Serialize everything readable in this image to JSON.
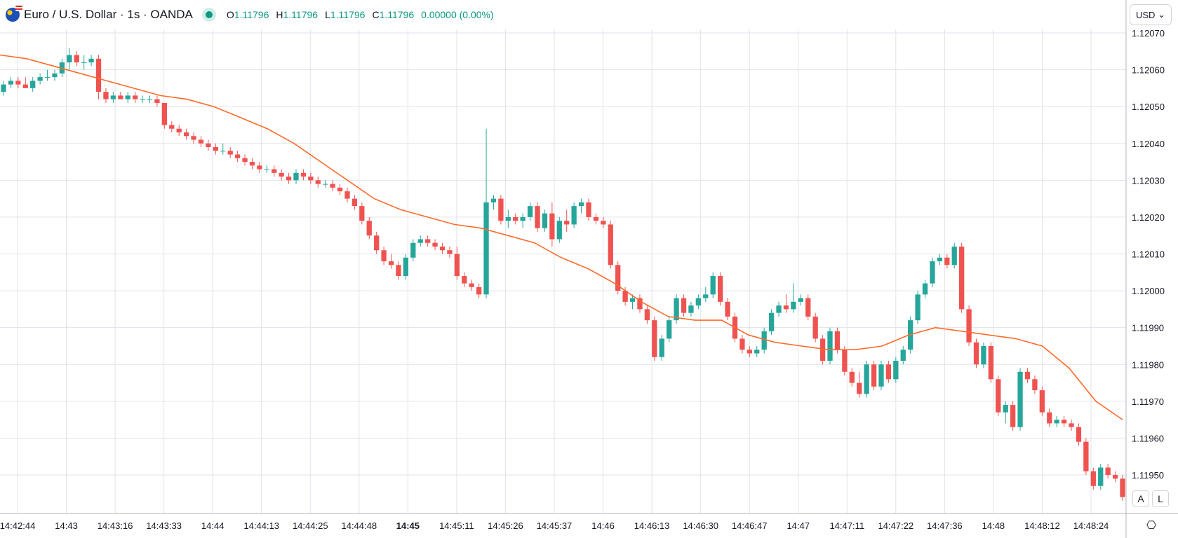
{
  "header": {
    "symbol": "Euro / U.S. Dollar · 1s · OANDA",
    "open_label": "O",
    "open": "1.11796",
    "high_label": "H",
    "high": "1.11796",
    "low_label": "L",
    "low": "1.11796",
    "close_label": "C",
    "close": "1.11796",
    "change": "0.00000 (0.00%)"
  },
  "price_axis": {
    "currency": "USD",
    "auto_button": "A",
    "log_button": "L"
  },
  "colors": {
    "up": "#26a69a",
    "down": "#ef5350",
    "ma": "#ff6a2a",
    "grid": "#e0e3eb",
    "text": "#131722"
  },
  "chart_data": {
    "type": "candlestick",
    "ylim": [
      1.11943,
      1.12073
    ],
    "y_ticks": [
      1.1207,
      1.1206,
      1.1205,
      1.1204,
      1.1203,
      1.1202,
      1.1201,
      1.12,
      1.1199,
      1.1198,
      1.1197,
      1.1196,
      1.1195
    ],
    "y_tick_labels": [
      "1.12070",
      "1.12060",
      "1.12050",
      "1.12040",
      "1.12030",
      "1.12020",
      "1.12010",
      "1.12000",
      "1.11990",
      "1.11980",
      "1.11970",
      "1.11960",
      "1.11950"
    ],
    "x_tick_labels": [
      "14:42:44",
      "14:43",
      "14:43:16",
      "14:43:33",
      "14:44",
      "14:44:13",
      "14:44:25",
      "14:44:48",
      "14:45",
      "14:45:11",
      "14:45:26",
      "14:45:37",
      "14:46",
      "14:46:13",
      "14:46:30",
      "14:46:47",
      "14:47",
      "14:47:11",
      "14:47:22",
      "14:47:36",
      "14:48",
      "14:48:12",
      "14:48:24"
    ],
    "bold_ticks": [
      "14:45"
    ],
    "grid": true,
    "moving_average": [
      1.12064,
      1.12063,
      1.12061,
      1.12059,
      1.12057,
      1.12055,
      1.12053,
      1.12052,
      1.1205,
      1.12047,
      1.12044,
      1.1204,
      1.12035,
      1.1203,
      1.12025,
      1.12022,
      1.1202,
      1.12018,
      1.12017,
      1.12015,
      1.12013,
      1.12009,
      1.12006,
      1.12002,
      1.11997,
      1.11993,
      1.11992,
      1.11992,
      1.11988,
      1.11986,
      1.11985,
      1.11984,
      1.11984,
      1.11985,
      1.11988,
      1.1199,
      1.11989,
      1.11988,
      1.11987,
      1.11985,
      1.11979,
      1.1197,
      1.11965
    ],
    "candles": [
      [
        1.12054,
        1.12057,
        1.12053,
        1.12056
      ],
      [
        1.12056,
        1.12058,
        1.12055,
        1.12057
      ],
      [
        1.12057,
        1.12058,
        1.12055,
        1.12056
      ],
      [
        1.12056,
        1.12058,
        1.12055,
        1.12055
      ],
      [
        1.12055,
        1.12058,
        1.12054,
        1.12057
      ],
      [
        1.12057,
        1.12059,
        1.12056,
        1.12058
      ],
      [
        1.12058,
        1.1206,
        1.12057,
        1.12058
      ],
      [
        1.12058,
        1.1206,
        1.12057,
        1.12059
      ],
      [
        1.12059,
        1.12063,
        1.12058,
        1.12062
      ],
      [
        1.12062,
        1.12066,
        1.1206,
        1.12064
      ],
      [
        1.12064,
        1.12065,
        1.12061,
        1.12062
      ],
      [
        1.12062,
        1.12064,
        1.1206,
        1.12062
      ],
      [
        1.12062,
        1.12064,
        1.12061,
        1.12063
      ],
      [
        1.12063,
        1.12064,
        1.12052,
        1.12054
      ],
      [
        1.12054,
        1.12055,
        1.12051,
        1.12052
      ],
      [
        1.12052,
        1.12054,
        1.12051,
        1.12053
      ],
      [
        1.12053,
        1.12054,
        1.12052,
        1.12052
      ],
      [
        1.12052,
        1.12054,
        1.12051,
        1.12053
      ],
      [
        1.12053,
        1.12054,
        1.12051,
        1.12052
      ],
      [
        1.12052,
        1.12053,
        1.12051,
        1.12052
      ],
      [
        1.12052,
        1.12053,
        1.12051,
        1.12052
      ],
      [
        1.12052,
        1.12053,
        1.1205,
        1.12051
      ],
      [
        1.12051,
        1.12051,
        1.12044,
        1.12045
      ],
      [
        1.12045,
        1.12046,
        1.12043,
        1.12044
      ],
      [
        1.12044,
        1.12045,
        1.12042,
        1.12043
      ],
      [
        1.12043,
        1.12044,
        1.12041,
        1.12042
      ],
      [
        1.12042,
        1.12043,
        1.1204,
        1.12041
      ],
      [
        1.12041,
        1.12042,
        1.12039,
        1.1204
      ],
      [
        1.1204,
        1.12041,
        1.12038,
        1.12039
      ],
      [
        1.12039,
        1.1204,
        1.12037,
        1.12038
      ],
      [
        1.12038,
        1.1204,
        1.12037,
        1.12038
      ],
      [
        1.12038,
        1.12039,
        1.12036,
        1.12037
      ],
      [
        1.12037,
        1.12038,
        1.12035,
        1.12036
      ],
      [
        1.12036,
        1.12037,
        1.12034,
        1.12035
      ],
      [
        1.12035,
        1.12036,
        1.12033,
        1.12034
      ],
      [
        1.12034,
        1.12035,
        1.12032,
        1.12033
      ],
      [
        1.12033,
        1.12034,
        1.12032,
        1.12033
      ],
      [
        1.12033,
        1.12034,
        1.12031,
        1.12032
      ],
      [
        1.12032,
        1.12033,
        1.1203,
        1.12031
      ],
      [
        1.12031,
        1.12032,
        1.12029,
        1.1203
      ],
      [
        1.1203,
        1.12033,
        1.12029,
        1.12032
      ],
      [
        1.12032,
        1.12033,
        1.1203,
        1.12031
      ],
      [
        1.12031,
        1.12032,
        1.12029,
        1.1203
      ],
      [
        1.1203,
        1.12031,
        1.12028,
        1.12029
      ],
      [
        1.12029,
        1.1203,
        1.12028,
        1.12029
      ],
      [
        1.12029,
        1.1203,
        1.12027,
        1.12028
      ],
      [
        1.12028,
        1.12029,
        1.12026,
        1.12027
      ],
      [
        1.12027,
        1.12028,
        1.12024,
        1.12025
      ],
      [
        1.12025,
        1.12026,
        1.12022,
        1.12023
      ],
      [
        1.12023,
        1.12024,
        1.12018,
        1.12019
      ],
      [
        1.12019,
        1.1202,
        1.12014,
        1.12015
      ],
      [
        1.12015,
        1.12016,
        1.1201,
        1.12011
      ],
      [
        1.12011,
        1.12012,
        1.12007,
        1.12008
      ],
      [
        1.12008,
        1.1201,
        1.12006,
        1.12007
      ],
      [
        1.12007,
        1.12008,
        1.12003,
        1.12004
      ],
      [
        1.12004,
        1.1201,
        1.12003,
        1.12009
      ],
      [
        1.12009,
        1.12014,
        1.12008,
        1.12013
      ],
      [
        1.12013,
        1.12015,
        1.12012,
        1.12014
      ],
      [
        1.12014,
        1.12015,
        1.12012,
        1.12013
      ],
      [
        1.12013,
        1.12014,
        1.12011,
        1.12012
      ],
      [
        1.12012,
        1.12013,
        1.1201,
        1.12011
      ],
      [
        1.12011,
        1.12012,
        1.12009,
        1.1201
      ],
      [
        1.1201,
        1.12012,
        1.12003,
        1.12004
      ],
      [
        1.12004,
        1.12005,
        1.12001,
        1.12002
      ],
      [
        1.12002,
        1.12003,
        1.12,
        1.12001
      ],
      [
        1.12001,
        1.12002,
        1.11998,
        1.11999
      ],
      [
        1.11999,
        1.12044,
        1.11998,
        1.12024
      ],
      [
        1.12024,
        1.12026,
        1.12022,
        1.12025
      ],
      [
        1.12025,
        1.12026,
        1.12018,
        1.12019
      ],
      [
        1.12019,
        1.12022,
        1.12017,
        1.1202
      ],
      [
        1.1202,
        1.12021,
        1.12018,
        1.12019
      ],
      [
        1.12019,
        1.12021,
        1.12017,
        1.1202
      ],
      [
        1.1202,
        1.12024,
        1.12019,
        1.12023
      ],
      [
        1.12023,
        1.12024,
        1.12016,
        1.12017
      ],
      [
        1.12017,
        1.12022,
        1.12016,
        1.12021
      ],
      [
        1.12021,
        1.12024,
        1.12012,
        1.12014
      ],
      [
        1.12014,
        1.1202,
        1.12013,
        1.12019
      ],
      [
        1.12019,
        1.12022,
        1.12016,
        1.12018
      ],
      [
        1.12018,
        1.12024,
        1.12017,
        1.12023
      ],
      [
        1.12023,
        1.12025,
        1.12021,
        1.12024
      ],
      [
        1.12024,
        1.12025,
        1.12019,
        1.1202
      ],
      [
        1.1202,
        1.12021,
        1.12018,
        1.12019
      ],
      [
        1.12019,
        1.1202,
        1.12017,
        1.12018
      ],
      [
        1.12018,
        1.12019,
        1.12006,
        1.12007
      ],
      [
        1.12007,
        1.12008,
        1.11999,
        1.12
      ],
      [
        1.12,
        1.12001,
        1.11996,
        1.11997
      ],
      [
        1.11997,
        1.11999,
        1.11995,
        1.11998
      ],
      [
        1.11998,
        1.11999,
        1.11994,
        1.11995
      ],
      [
        1.11995,
        1.11996,
        1.11991,
        1.11992
      ],
      [
        1.11992,
        1.11993,
        1.11981,
        1.11982
      ],
      [
        1.11982,
        1.11988,
        1.11981,
        1.11987
      ],
      [
        1.11987,
        1.11993,
        1.11986,
        1.11992
      ],
      [
        1.11992,
        1.11999,
        1.11991,
        1.11998
      ],
      [
        1.11998,
        1.11999,
        1.11993,
        1.11994
      ],
      [
        1.11994,
        1.11997,
        1.11993,
        1.11996
      ],
      [
        1.11996,
        1.11999,
        1.11995,
        1.11998
      ],
      [
        1.11998,
        1.12001,
        1.11997,
        1.11999
      ],
      [
        1.11999,
        1.12005,
        1.11998,
        1.12004
      ],
      [
        1.12004,
        1.12005,
        1.11996,
        1.11997
      ],
      [
        1.11997,
        1.11998,
        1.11992,
        1.11993
      ],
      [
        1.11993,
        1.11994,
        1.11986,
        1.11987
      ],
      [
        1.11987,
        1.11988,
        1.11983,
        1.11984
      ],
      [
        1.11984,
        1.11985,
        1.11982,
        1.11983
      ],
      [
        1.11983,
        1.11985,
        1.11982,
        1.11984
      ],
      [
        1.11984,
        1.1199,
        1.11983,
        1.11989
      ],
      [
        1.11989,
        1.11995,
        1.11988,
        1.11994
      ],
      [
        1.11994,
        1.11997,
        1.11993,
        1.11996
      ],
      [
        1.11996,
        1.11999,
        1.11994,
        1.11995
      ],
      [
        1.11995,
        1.12002,
        1.11994,
        1.11997
      ],
      [
        1.11997,
        1.11999,
        1.11996,
        1.11998
      ],
      [
        1.11998,
        1.11999,
        1.11992,
        1.11993
      ],
      [
        1.11993,
        1.11994,
        1.11986,
        1.11987
      ],
      [
        1.11987,
        1.11988,
        1.1198,
        1.11981
      ],
      [
        1.11981,
        1.1199,
        1.1198,
        1.11989
      ],
      [
        1.11989,
        1.1199,
        1.11983,
        1.11984
      ],
      [
        1.11984,
        1.11985,
        1.11977,
        1.11978
      ],
      [
        1.11978,
        1.11979,
        1.11974,
        1.11975
      ],
      [
        1.11975,
        1.11978,
        1.11971,
        1.11972
      ],
      [
        1.11972,
        1.11981,
        1.11971,
        1.1198
      ],
      [
        1.1198,
        1.11981,
        1.11973,
        1.11974
      ],
      [
        1.11974,
        1.11981,
        1.11973,
        1.1198
      ],
      [
        1.1198,
        1.11981,
        1.11975,
        1.11976
      ],
      [
        1.11976,
        1.11982,
        1.11975,
        1.11981
      ],
      [
        1.11981,
        1.11985,
        1.1198,
        1.11984
      ],
      [
        1.11984,
        1.11993,
        1.11983,
        1.11992
      ],
      [
        1.11992,
        1.12,
        1.11991,
        1.11999
      ],
      [
        1.11999,
        1.12003,
        1.11998,
        1.12002
      ],
      [
        1.12002,
        1.12009,
        1.12001,
        1.12008
      ],
      [
        1.12008,
        1.1201,
        1.12007,
        1.12009
      ],
      [
        1.12009,
        1.1201,
        1.12006,
        1.12007
      ],
      [
        1.12007,
        1.12013,
        1.12006,
        1.12012
      ],
      [
        1.12012,
        1.12013,
        1.11994,
        1.11995
      ],
      [
        1.11995,
        1.11996,
        1.11985,
        1.11986
      ],
      [
        1.11986,
        1.11987,
        1.11979,
        1.1198
      ],
      [
        1.1198,
        1.11986,
        1.11979,
        1.11985
      ],
      [
        1.11985,
        1.11986,
        1.11975,
        1.11976
      ],
      [
        1.11976,
        1.11977,
        1.11966,
        1.11967
      ],
      [
        1.11967,
        1.1197,
        1.11964,
        1.11969
      ],
      [
        1.11969,
        1.1197,
        1.11962,
        1.11963
      ],
      [
        1.11963,
        1.11979,
        1.11962,
        1.11978
      ],
      [
        1.11978,
        1.11979,
        1.11975,
        1.11976
      ],
      [
        1.11976,
        1.11977,
        1.11972,
        1.11973
      ],
      [
        1.11973,
        1.11974,
        1.11966,
        1.11967
      ],
      [
        1.11967,
        1.11968,
        1.11963,
        1.11964
      ],
      [
        1.11964,
        1.11966,
        1.11963,
        1.11965
      ],
      [
        1.11965,
        1.11966,
        1.11963,
        1.11964
      ],
      [
        1.11964,
        1.11965,
        1.11962,
        1.11963
      ],
      [
        1.11963,
        1.11964,
        1.11958,
        1.11959
      ],
      [
        1.11959,
        1.1196,
        1.1195,
        1.11951
      ],
      [
        1.11951,
        1.11952,
        1.11946,
        1.11947
      ],
      [
        1.11947,
        1.11953,
        1.11946,
        1.11952
      ],
      [
        1.11952,
        1.11953,
        1.11949,
        1.1195
      ],
      [
        1.1195,
        1.11951,
        1.11948,
        1.11949
      ],
      [
        1.11949,
        1.1195,
        1.11943,
        1.11944
      ]
    ]
  }
}
